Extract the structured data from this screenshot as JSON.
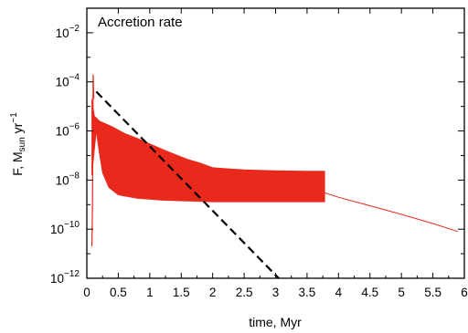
{
  "chart_data": {
    "type": "line",
    "title": "Accretion rate",
    "xlabel": "time, Myr",
    "ylabel": {
      "base": "F, M",
      "sub": "sun",
      "unit": " yr",
      "exp": "−1"
    },
    "xlim": [
      0,
      6
    ],
    "ylim_log10": [
      -12,
      -1
    ],
    "yscale": "log",
    "x_ticks": [
      "0",
      "0.5",
      "1",
      "1.5",
      "2",
      "2.5",
      "3",
      "3.5",
      "4",
      "4.5",
      "5",
      "5.5",
      "6"
    ],
    "y_ticks": [
      {
        "base": "10",
        "exp": "−2"
      },
      {
        "base": "10",
        "exp": "−4"
      },
      {
        "base": "10",
        "exp": "−6"
      },
      {
        "base": "10",
        "exp": "−8"
      },
      {
        "base": "10",
        "exp": "−10"
      },
      {
        "base": "10",
        "exp": "−12"
      }
    ],
    "series": [
      {
        "style": "red-solid",
        "color": "#e8291c",
        "band_upper": [
          [
            0.08,
            2e-05
          ],
          [
            0.12,
            4e-06
          ],
          [
            0.2,
            2.5e-06
          ],
          [
            0.4,
            1.5e-06
          ],
          [
            0.6,
            8e-07
          ],
          [
            0.8,
            5e-07
          ],
          [
            1.0,
            3e-07
          ],
          [
            1.2,
            1.8e-07
          ],
          [
            1.4,
            1.1e-07
          ],
          [
            1.6,
            7e-08
          ],
          [
            1.8,
            5e-08
          ],
          [
            2.0,
            3.2e-08
          ],
          [
            2.5,
            2.6e-08
          ],
          [
            3.0,
            2.4e-08
          ],
          [
            3.5,
            2.3e-08
          ],
          [
            3.78,
            2.3e-08
          ]
        ],
        "band_lower": [
          [
            0.08,
            1.6e-08
          ],
          [
            0.15,
            1e-06
          ],
          [
            0.2,
            1.2e-07
          ],
          [
            0.25,
            2e-08
          ],
          [
            0.35,
            5e-09
          ],
          [
            0.5,
            2.5e-09
          ],
          [
            0.8,
            1.8e-09
          ],
          [
            1.2,
            1.5e-09
          ],
          [
            2.0,
            1.3e-09
          ],
          [
            3.0,
            1.3e-09
          ],
          [
            3.78,
            1.3e-09
          ]
        ],
        "spike": [
          [
            0.08,
            2e-11
          ],
          [
            0.09,
            1e-09
          ],
          [
            0.1,
            0.0002
          ],
          [
            0.11,
            2e-05
          ]
        ],
        "tail": [
          [
            3.78,
            3e-09
          ],
          [
            4.0,
            2e-09
          ],
          [
            4.5,
            9e-10
          ],
          [
            5.0,
            4e-10
          ],
          [
            5.5,
            1.7e-10
          ],
          [
            5.9,
            8e-11
          ]
        ]
      },
      {
        "style": "black-dashed",
        "color": "#000000",
        "points": [
          [
            0.15,
            4e-05
          ],
          [
            3.05,
            1e-12
          ]
        ]
      }
    ]
  }
}
